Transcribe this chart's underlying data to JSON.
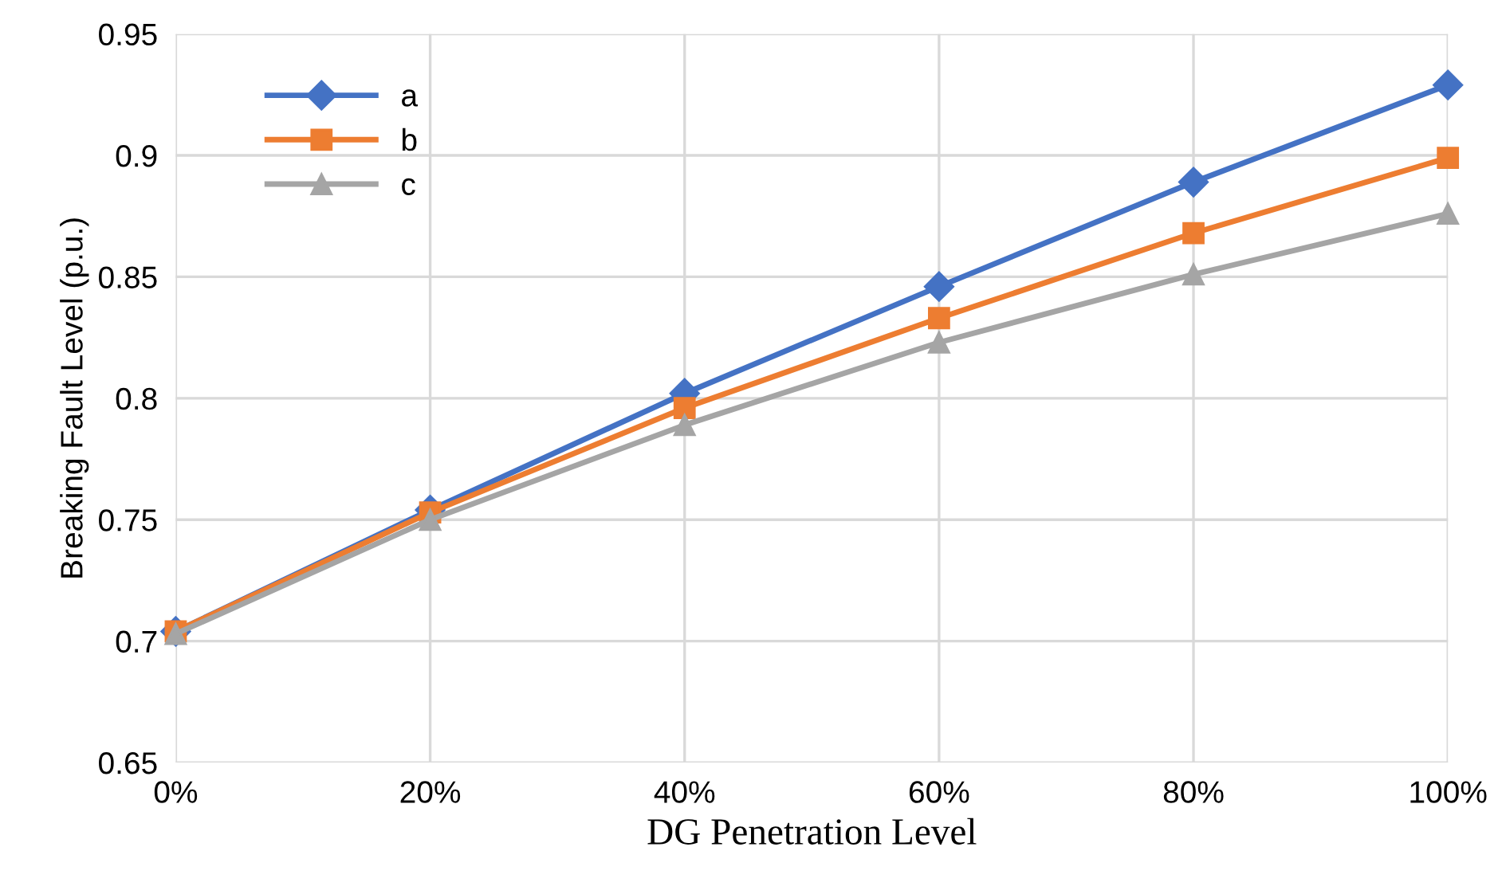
{
  "chart_data": {
    "type": "line",
    "xlabel": "DG Penetration Level",
    "ylabel": "Breaking Fault Level (p.u.)",
    "categories": [
      "0%",
      "20%",
      "40%",
      "60%",
      "80%",
      "100%"
    ],
    "series": [
      {
        "name": "a",
        "color": "#4472c4",
        "marker": "diamond",
        "values": [
          0.704,
          0.754,
          0.802,
          0.846,
          0.889,
          0.929
        ]
      },
      {
        "name": "b",
        "color": "#ed7d31",
        "marker": "square",
        "values": [
          0.704,
          0.753,
          0.796,
          0.833,
          0.868,
          0.899
        ]
      },
      {
        "name": "c",
        "color": "#a5a5a5",
        "marker": "triangle",
        "values": [
          0.703,
          0.75,
          0.789,
          0.823,
          0.851,
          0.876
        ]
      }
    ],
    "ylim": [
      0.65,
      0.95
    ],
    "yticks": [
      0.65,
      0.7,
      0.75,
      0.8,
      0.85,
      0.9,
      0.95
    ],
    "grid": true,
    "legend": "top left",
    "line_style": "solid"
  }
}
